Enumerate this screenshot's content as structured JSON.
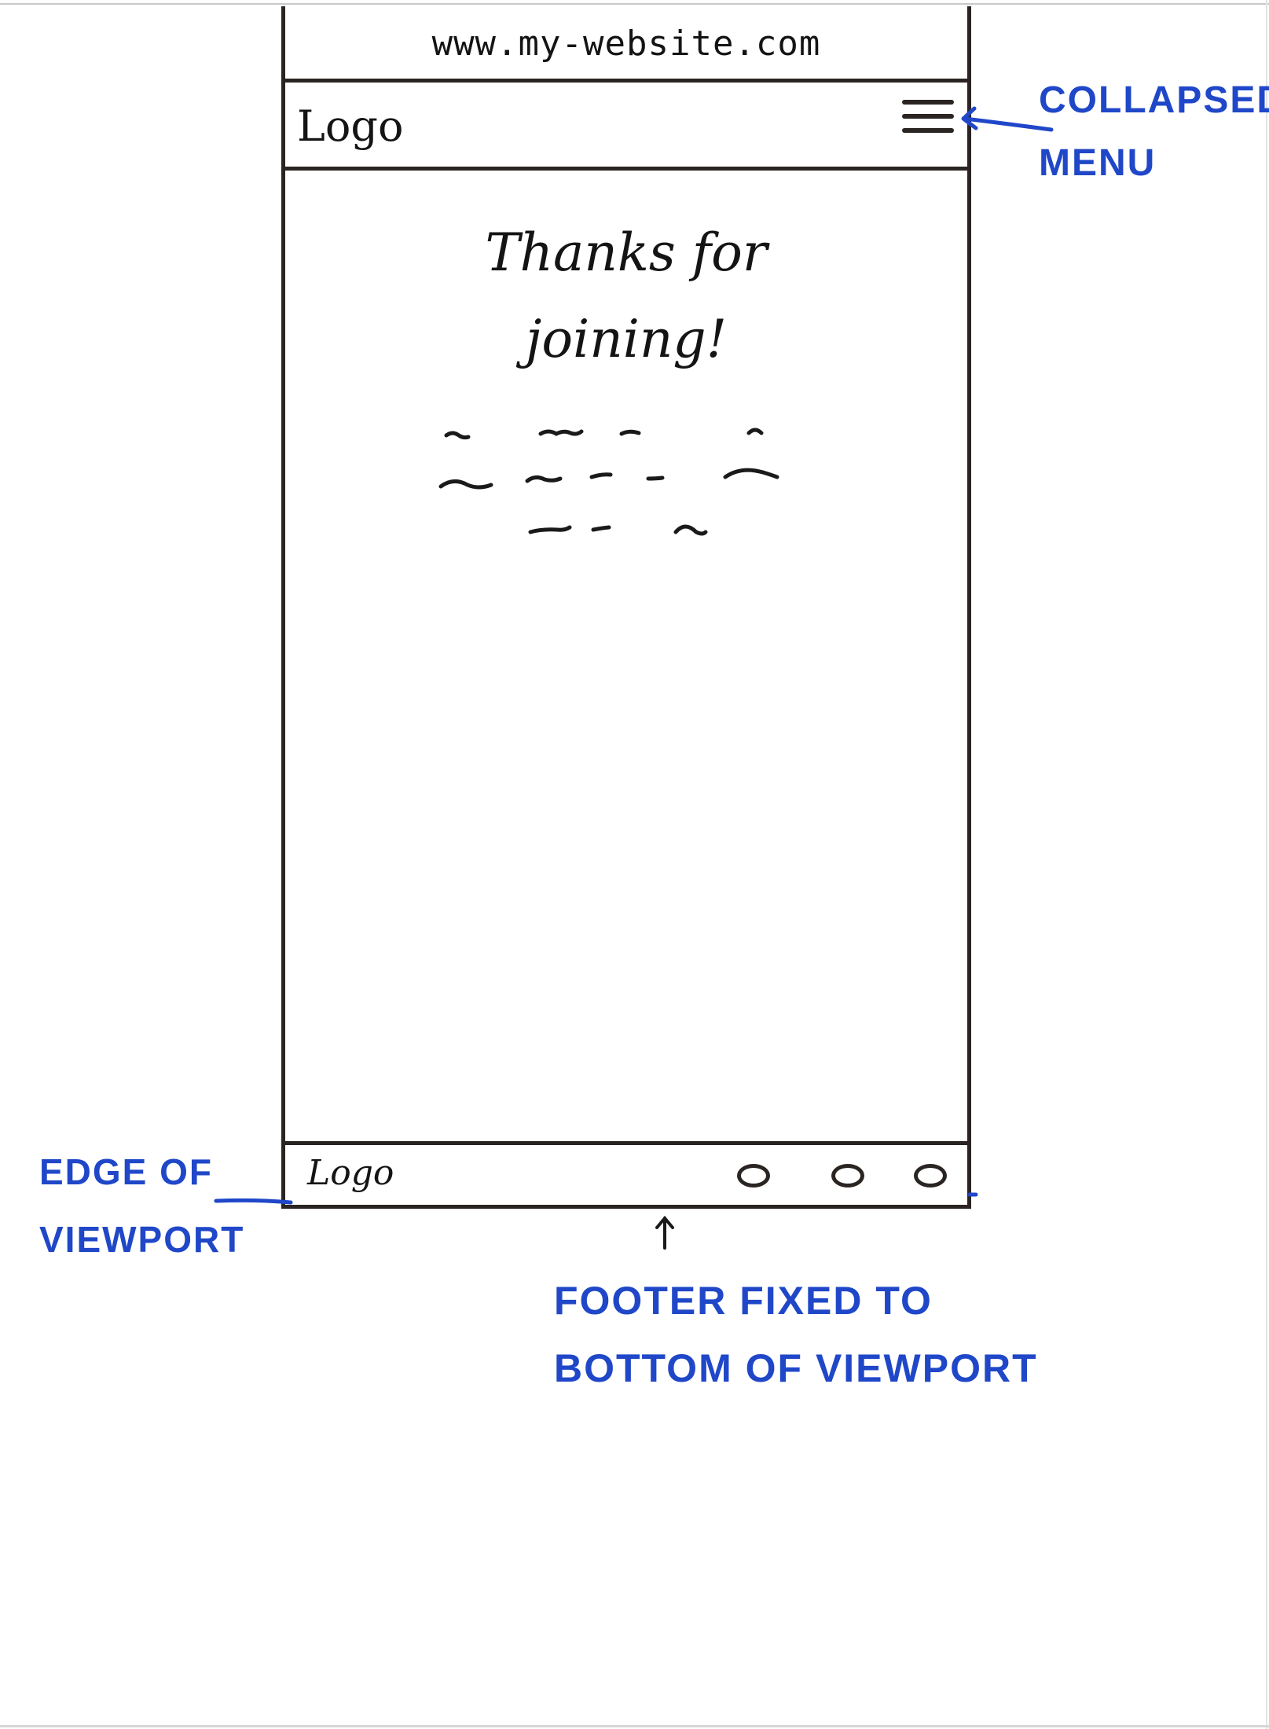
{
  "wireframe": {
    "url": "www.my-website.com",
    "header": {
      "logo": "Logo",
      "menu_icon": "hamburger-menu-icon"
    },
    "main": {
      "title": "Thanks for\njoining!"
    },
    "footer": {
      "logo": "Logo",
      "icons": [
        "circle-icon",
        "circle-icon",
        "circle-icon"
      ]
    }
  },
  "annotations": {
    "collapsed_menu": "COLLAPSED\nMENU",
    "edge_of_viewport": "EDGE OF\nVIEWPORT",
    "footer_fixed": "FOOTER FIXED TO\nBOTTOM OF VIEWPORT"
  },
  "colors": {
    "ink": "#2a2422",
    "annotation": "#1f47c8",
    "background": "#ffffff"
  }
}
